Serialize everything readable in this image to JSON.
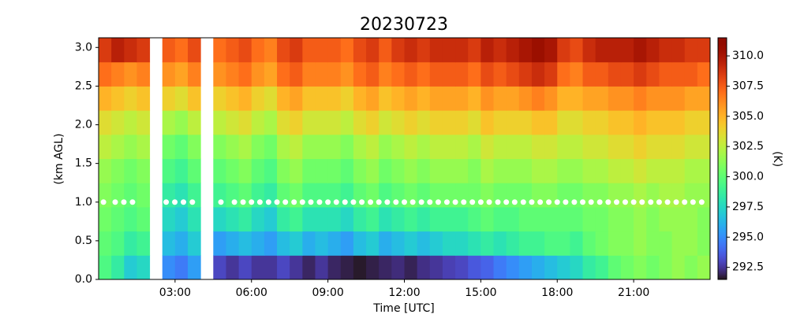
{
  "chart_data": {
    "type": "heatmap",
    "title": "20230723",
    "x_label": "Time [UTC]",
    "y_label": "(km AGL)",
    "colorbar_label": "(K)",
    "colormap": "turbo",
    "xlim": [
      0,
      24
    ],
    "ylim": [
      0,
      3.125
    ],
    "clim": [
      291.5,
      311.5
    ],
    "xticks": [
      {
        "value": 3,
        "label": "03:00"
      },
      {
        "value": 6,
        "label": "06:00"
      },
      {
        "value": 9,
        "label": "09:00"
      },
      {
        "value": 12,
        "label": "12:00"
      },
      {
        "value": 15,
        "label": "15:00"
      },
      {
        "value": 18,
        "label": "18:00"
      },
      {
        "value": 21,
        "label": "21:00"
      }
    ],
    "yticks": [
      {
        "value": 0,
        "label": "0.0"
      },
      0.5,
      {
        "value": 1,
        "label": "1.0"
      },
      1.5,
      {
        "value": 2,
        "label": "2.0"
      },
      2.5,
      {
        "value": 3,
        "label": "3.0"
      }
    ],
    "cticks": [
      {
        "value": 292.5,
        "label": "292.5"
      },
      {
        "value": 295,
        "label": "295.0"
      },
      {
        "value": 297.5,
        "label": "297.5"
      },
      {
        "value": 300,
        "label": "300.0"
      },
      {
        "value": 302.5,
        "label": "302.5"
      },
      {
        "value": 305,
        "label": "305.0"
      },
      {
        "value": 307.5,
        "label": "307.5"
      },
      {
        "value": 310,
        "label": "310.0"
      }
    ],
    "x_edges": [
      0,
      0.5,
      1,
      1.5,
      2,
      2.5,
      3,
      3.5,
      4,
      4.5,
      5,
      5.5,
      6,
      6.5,
      7,
      7.5,
      8,
      8.5,
      9,
      9.5,
      10,
      10.5,
      11,
      11.5,
      12,
      12.5,
      13,
      13.5,
      14,
      14.5,
      15,
      15.5,
      16,
      16.5,
      17,
      17.5,
      18,
      18.5,
      19,
      19.5,
      20,
      20.5,
      21,
      21.5,
      22,
      22.5,
      23,
      23.5,
      24
    ],
    "y_edges": [
      0,
      0.3125,
      0.625,
      0.9375,
      1.25,
      1.5625,
      1.875,
      2.1875,
      2.5,
      2.8125,
      3.125
    ],
    "z": [
      [
        299.5,
        298.5,
        297,
        297.5,
        null,
        295,
        294.5,
        295.5,
        null,
        293,
        292.5,
        293,
        292.5,
        292.5,
        293,
        292.5,
        292,
        292.5,
        292,
        291.8,
        291.6,
        291.8,
        292,
        292.2,
        291.9,
        292.3,
        292.5,
        292.8,
        293,
        293.5,
        293.8,
        294.5,
        295,
        295.5,
        296,
        296.5,
        297,
        297.5,
        298.5,
        299,
        300,
        300.5,
        301,
        300.5,
        301,
        301.5,
        301,
        301.5
      ],
      [
        300,
        299.5,
        298.5,
        299,
        null,
        296.5,
        296,
        297,
        null,
        295.5,
        296,
        296.5,
        296,
        295.5,
        296.5,
        297,
        296,
        296.5,
        296,
        295.5,
        296.5,
        297,
        296,
        296.5,
        297,
        296.5,
        297,
        297.5,
        297.5,
        298,
        298.5,
        298,
        298.5,
        299,
        299,
        299.5,
        299.5,
        299,
        300,
        300.5,
        301,
        301,
        301.5,
        301,
        301,
        301.5,
        301.5,
        301
      ],
      [
        300.5,
        300,
        299.5,
        300,
        null,
        297.5,
        297,
        298,
        null,
        297.5,
        298,
        298.5,
        297.5,
        297,
        298.5,
        299,
        298,
        298,
        298,
        297.5,
        298.5,
        299,
        298,
        298.5,
        299,
        298.5,
        299,
        299,
        299,
        299.5,
        300,
        299.5,
        299.5,
        300,
        300,
        300,
        300,
        300,
        300.5,
        300.5,
        301,
        301,
        301.5,
        301,
        301.5,
        301.5,
        301.5,
        301
      ],
      [
        301,
        300.5,
        300,
        300.5,
        null,
        298.5,
        298,
        299,
        null,
        299,
        299.5,
        300,
        299,
        298.5,
        300,
        300.5,
        299.5,
        299.5,
        299.5,
        299,
        300,
        300.5,
        299.5,
        300,
        300.5,
        300,
        300.5,
        300.5,
        300.5,
        300.5,
        301,
        300.5,
        300.5,
        300.5,
        301,
        301,
        300.5,
        300.5,
        301,
        301,
        301.5,
        301.5,
        302,
        301.5,
        302,
        302,
        301.5,
        301.5
      ],
      [
        301.5,
        301,
        300.5,
        301,
        null,
        299.5,
        299,
        300,
        null,
        300,
        300.5,
        301,
        300,
        299.5,
        301,
        301.5,
        300.5,
        300.5,
        300.5,
        300,
        301,
        301.5,
        300.5,
        301,
        301.5,
        301,
        301.5,
        301.5,
        301.5,
        301,
        302,
        301.5,
        301.5,
        301.5,
        302,
        302,
        301.5,
        301.5,
        302,
        302,
        302.5,
        302.5,
        303,
        302.5,
        302.5,
        302.5,
        302,
        302
      ],
      [
        302.5,
        302,
        301.5,
        302,
        null,
        300.5,
        300,
        301,
        null,
        301,
        301.5,
        302,
        301,
        300.5,
        302,
        302.5,
        301.5,
        301.5,
        301.5,
        301,
        302,
        302.5,
        301.5,
        302,
        302.5,
        302,
        302.5,
        302.5,
        302.5,
        302,
        303,
        302.5,
        302.5,
        302.5,
        303,
        303,
        302.5,
        302.5,
        303,
        303,
        303.5,
        303.5,
        304,
        303.5,
        303.5,
        303.5,
        303,
        303
      ],
      [
        303.5,
        303,
        302.5,
        303,
        null,
        302,
        301.5,
        302.5,
        null,
        302.5,
        303,
        303.5,
        302.5,
        302,
        303.5,
        304,
        303,
        303,
        303,
        302.5,
        303.5,
        304,
        303,
        303.5,
        304,
        303.5,
        304,
        304,
        304,
        303.5,
        304.5,
        304,
        304,
        304,
        304.5,
        304.5,
        303.5,
        303.5,
        304,
        304,
        304.5,
        304.5,
        305,
        304.5,
        304.5,
        304.5,
        304,
        304
      ],
      [
        305,
        304.5,
        304,
        304.5,
        null,
        304,
        303.5,
        304.5,
        null,
        304,
        304.5,
        305,
        304,
        303.5,
        305,
        305.5,
        304.5,
        304.5,
        304.5,
        304,
        305,
        305.5,
        304.5,
        305,
        305.5,
        305,
        305.5,
        305.5,
        305.5,
        305,
        306,
        305.5,
        305.5,
        306,
        306.5,
        306,
        305,
        305,
        305.5,
        305.5,
        306,
        306,
        306.5,
        306,
        306,
        306,
        305.5,
        305.5
      ],
      [
        307,
        306.5,
        306,
        306.5,
        null,
        306,
        305.5,
        306.5,
        null,
        306,
        306.5,
        307,
        306,
        305.5,
        307,
        307.5,
        306.5,
        306.5,
        306.5,
        306,
        307,
        307.5,
        306.5,
        307,
        307.5,
        307,
        307.5,
        307.5,
        307.5,
        307,
        308,
        307.5,
        308,
        308.5,
        309,
        308.5,
        307,
        306.5,
        307.5,
        307.5,
        308,
        308,
        308.5,
        308,
        307.5,
        307.5,
        307.5,
        307
      ],
      [
        308.5,
        309.5,
        309,
        308.5,
        null,
        307.5,
        307,
        308,
        null,
        307,
        307.5,
        308,
        307,
        306.5,
        308,
        308.5,
        307.5,
        307.5,
        307.5,
        307,
        308,
        308.5,
        307.5,
        308.5,
        309,
        308.5,
        309,
        309,
        309,
        308.5,
        309.5,
        309,
        309.5,
        310,
        310.5,
        310,
        308.5,
        308,
        309,
        309.5,
        309.5,
        309.5,
        310,
        309.5,
        309,
        309,
        308.5,
        308.5
      ]
    ],
    "markers": {
      "color": "#ffffff",
      "y": 1,
      "x": [
        0.19,
        0.65,
        0.99,
        1.33,
        2.65,
        2.99,
        3.33,
        3.68,
        4.8,
        5.33,
        5.67,
        6,
        6.33,
        6.67,
        7,
        7.33,
        7.67,
        8,
        8.33,
        8.67,
        9,
        9.33,
        9.67,
        10,
        10.33,
        10.67,
        11,
        11.33,
        11.67,
        12,
        12.33,
        12.67,
        13,
        13.33,
        13.67,
        14,
        14.33,
        14.67,
        15,
        15.33,
        15.67,
        16,
        16.33,
        16.67,
        17,
        17.33,
        17.67,
        18,
        18.33,
        18.67,
        19,
        19.33,
        19.67,
        20,
        20.33,
        20.67,
        21,
        21.33,
        21.67,
        22,
        22.33,
        22.67,
        23,
        23.33,
        23.67
      ]
    }
  }
}
